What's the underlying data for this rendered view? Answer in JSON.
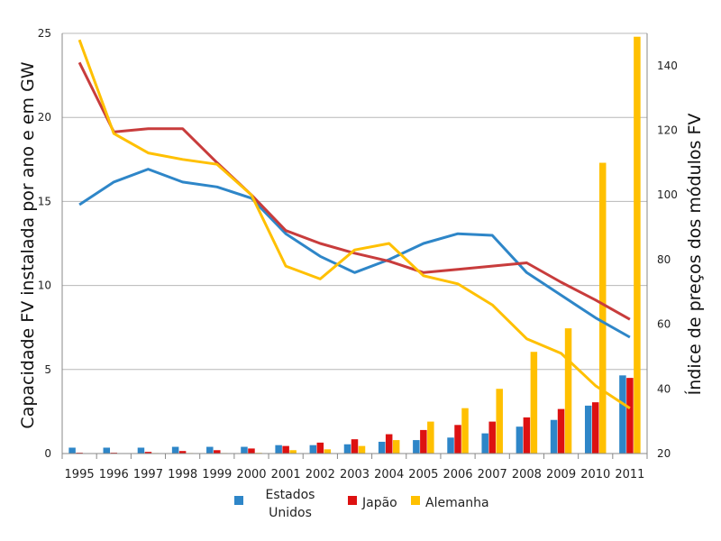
{
  "chart_data": {
    "type": "bar+line",
    "x": [
      "1995",
      "1996",
      "1997",
      "1998",
      "1999",
      "2000",
      "2001",
      "2002",
      "2003",
      "2004",
      "2005",
      "2006",
      "2007",
      "2008",
      "2009",
      "2010",
      "2011"
    ],
    "ylabel": "Capacidade FV instalada por ano e em GW",
    "y2label": "Índice de preços dos módulos FV",
    "ylim": [
      0,
      25
    ],
    "yticks": [
      0,
      5,
      10,
      15,
      20,
      25
    ],
    "y2lim": [
      20,
      150
    ],
    "y2ticks": [
      20,
      40,
      60,
      80,
      100,
      120,
      140
    ],
    "grid": true,
    "legend_position": "bottom",
    "bar_series": [
      {
        "name": "Estados Unidos",
        "color": "#2e86c8",
        "values": [
          0.35,
          0.35,
          0.35,
          0.4,
          0.4,
          0.4,
          0.5,
          0.5,
          0.55,
          0.7,
          0.8,
          0.95,
          1.2,
          1.6,
          2.0,
          2.85,
          4.65
        ]
      },
      {
        "name": "Japão",
        "color": "#dd1111",
        "values": [
          0.05,
          0.05,
          0.1,
          0.15,
          0.2,
          0.3,
          0.45,
          0.65,
          0.85,
          1.15,
          1.4,
          1.7,
          1.9,
          2.15,
          2.65,
          3.05,
          4.5
        ]
      },
      {
        "name": "Alemanha",
        "color": "#ffc000",
        "values": [
          0.02,
          0.02,
          0.03,
          0.03,
          0.03,
          0.04,
          0.2,
          0.25,
          0.45,
          0.8,
          1.9,
          2.7,
          3.85,
          6.05,
          7.45,
          17.3,
          24.8
        ]
      }
    ],
    "line_series": [
      {
        "color": "#2e86c8",
        "axis": "y2",
        "values": [
          97,
          104,
          108,
          104,
          102.5,
          99,
          88,
          81,
          76,
          80,
          85,
          88,
          87.5,
          76,
          69,
          62,
          56
        ]
      },
      {
        "color": "#c83c3c",
        "axis": "y2",
        "values": [
          141,
          119.5,
          120.5,
          120.5,
          110,
          100,
          89,
          85,
          82,
          79.5,
          76,
          77,
          78,
          79,
          73,
          67.5,
          61.5
        ]
      },
      {
        "color": "#ffc000",
        "axis": "y2",
        "values": [
          148,
          119,
          113,
          111,
          109.5,
          100,
          78,
          74,
          83,
          85,
          75,
          72.5,
          66,
          55.5,
          51,
          41,
          34
        ]
      }
    ],
    "legend": [
      {
        "label": "Estados",
        "label2": "Unidos",
        "color": "#2e86c8"
      },
      {
        "label": "Japão",
        "label2": "",
        "color": "#dd1111"
      },
      {
        "label": "Alemanha",
        "label2": "",
        "color": "#ffc000"
      }
    ]
  }
}
